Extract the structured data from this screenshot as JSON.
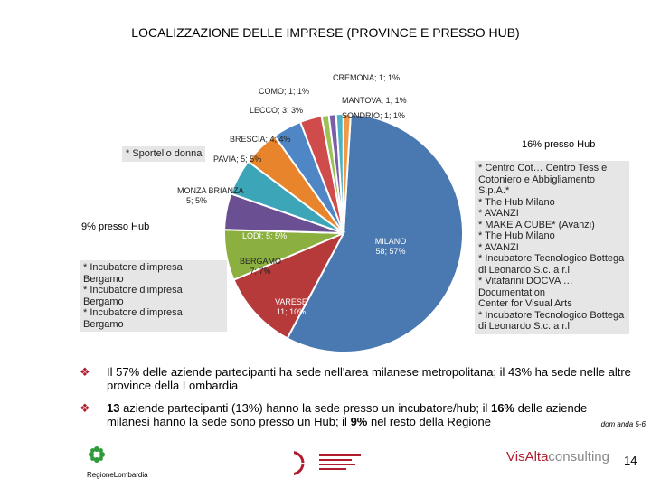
{
  "title": "LOCALIZZAZIONE DELLE IMPRESE (PROVINCE E PRESSO HUB)",
  "chart_data": {
    "type": "pie",
    "title": "LOCALIZZAZIONE DELLE IMPRESE (PROVINCE E PRESSO HUB)",
    "slices": [
      {
        "name": "MILANO",
        "value": 58,
        "pct": 57,
        "label": "MILANO",
        "sub": "58; 57%",
        "color": "#4a78b0",
        "text_color": "#ffffff"
      },
      {
        "name": "VARESE",
        "value": 11,
        "pct": 10,
        "label": "VARESE",
        "sub": "11; 10%",
        "color": "#b73a3a",
        "text_color": "#ffffff"
      },
      {
        "name": "BERGAMO",
        "value": 7,
        "pct": 7,
        "label": "BERGAMO",
        "sub": "7; 7%",
        "color": "#8bb040",
        "text_color": "#222222"
      },
      {
        "name": "LODI",
        "value": 5,
        "pct": 5,
        "label": "LODI; 5; 5%",
        "sub": "",
        "color": "#6a4f92",
        "text_color": "#ffffff"
      },
      {
        "name": "MONZA BRIANZA",
        "value": 5,
        "pct": 5,
        "label": "MONZA BRIANZA",
        "sub": "5; 5%",
        "color": "#3da5b8",
        "text_color": "#222222"
      },
      {
        "name": "PAVIA",
        "value": 5,
        "pct": 5,
        "label": "PAVIA; 5; 5%",
        "sub": "",
        "color": "#e8842b",
        "text_color": "#222222"
      },
      {
        "name": "BRESCIA",
        "value": 4,
        "pct": 4,
        "label": "BRESCIA; 4; 4%",
        "sub": "",
        "color": "#4f86c6",
        "text_color": "#222222"
      },
      {
        "name": "LECCO",
        "value": 3,
        "pct": 3,
        "label": "LECCO; 3; 3%",
        "sub": "",
        "color": "#d04b4b",
        "text_color": "#222222"
      },
      {
        "name": "COMO",
        "value": 1,
        "pct": 1,
        "label": "COMO; 1; 1%",
        "sub": "",
        "color": "#9bc256",
        "text_color": "#222222"
      },
      {
        "name": "CREMONA",
        "value": 1,
        "pct": 1,
        "label": "CREMONA; 1; 1%",
        "sub": "",
        "color": "#7a5fa8",
        "text_color": "#222222"
      },
      {
        "name": "MANTOVA",
        "value": 1,
        "pct": 1,
        "label": "MANTOVA; 1; 1%",
        "sub": "",
        "color": "#4ab3c4",
        "text_color": "#222222"
      },
      {
        "name": "SONDRIO",
        "value": 1,
        "pct": 1,
        "label": "SONDRIO; 1; 1%",
        "sub": "",
        "color": "#f19a45",
        "text_color": "#222222"
      }
    ]
  },
  "notes": {
    "sportello": "* Sportello donna",
    "hub16_label": "16% presso Hub",
    "hub16_lines": [
      "* Centro Cot… Centro Tess e",
      "Cotoniero e Abbigliamento S.p.A.*",
      "* The Hub Milano",
      "* AVANZI",
      "* MAKE A CUBE* (Avanzi)",
      "* The Hub Milano",
      "* AVANZI",
      "* Incubatore Tecnologico Bottega",
      "di Leonardo S.c. a r.l",
      "* Vitafarini DOCVA … Documentation",
      "Center for Visual Arts",
      "* Incubatore Tecnologico Bottega",
      "di Leonardo S.c. a r.l"
    ],
    "hub9_label": "9% presso Hub",
    "hub9_lines": [
      "* Incubatore d'impresa Bergamo",
      "* Incubatore d'impresa Bergamo",
      "* Incubatore d'impresa Bergamo"
    ]
  },
  "bullets": [
    {
      "lead": "",
      "text": "Il 57% delle aziende partecipanti ha sede nell'area milanese metropolitana; il 43% ha sede nelle altre province della Lombardia"
    },
    {
      "lead": "13",
      "text_a": " aziende partecipanti (13%) hanno la sede presso un incubatore/hub; il ",
      "bold_b": "16%",
      "text_c": " delle aziende milanesi hanno la sede sono presso un Hub; il ",
      "bold_d": "9%",
      "text_e": " nel resto della Regione"
    }
  ],
  "source": "dom anda 5-6",
  "footer": {
    "left_logo_text": "RegioneLombardia",
    "right_logo_a": "VisAlta",
    "right_logo_b": "consulting",
    "page_number": "14"
  }
}
